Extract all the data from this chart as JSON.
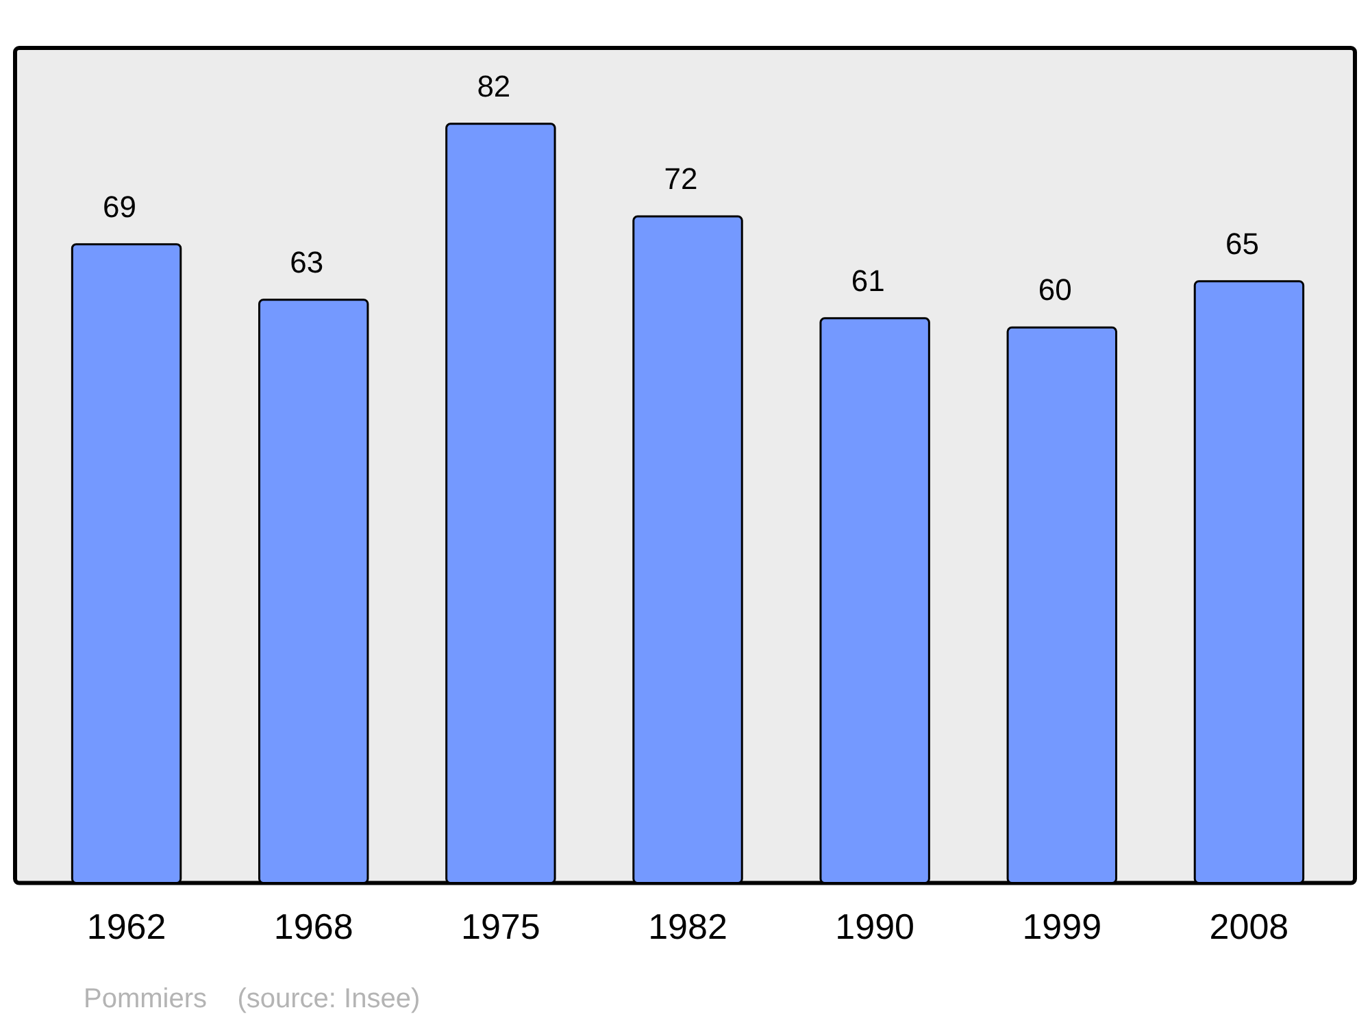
{
  "chart_data": {
    "type": "bar",
    "categories": [
      "1962",
      "1968",
      "1975",
      "1982",
      "1990",
      "1999",
      "2008"
    ],
    "values": [
      69,
      63,
      82,
      72,
      61,
      60,
      65
    ],
    "color": "#7499ff",
    "data_labels": true,
    "grid": false,
    "legend": false,
    "annotations": [
      "Pommiers    (source: Insee)"
    ]
  }
}
